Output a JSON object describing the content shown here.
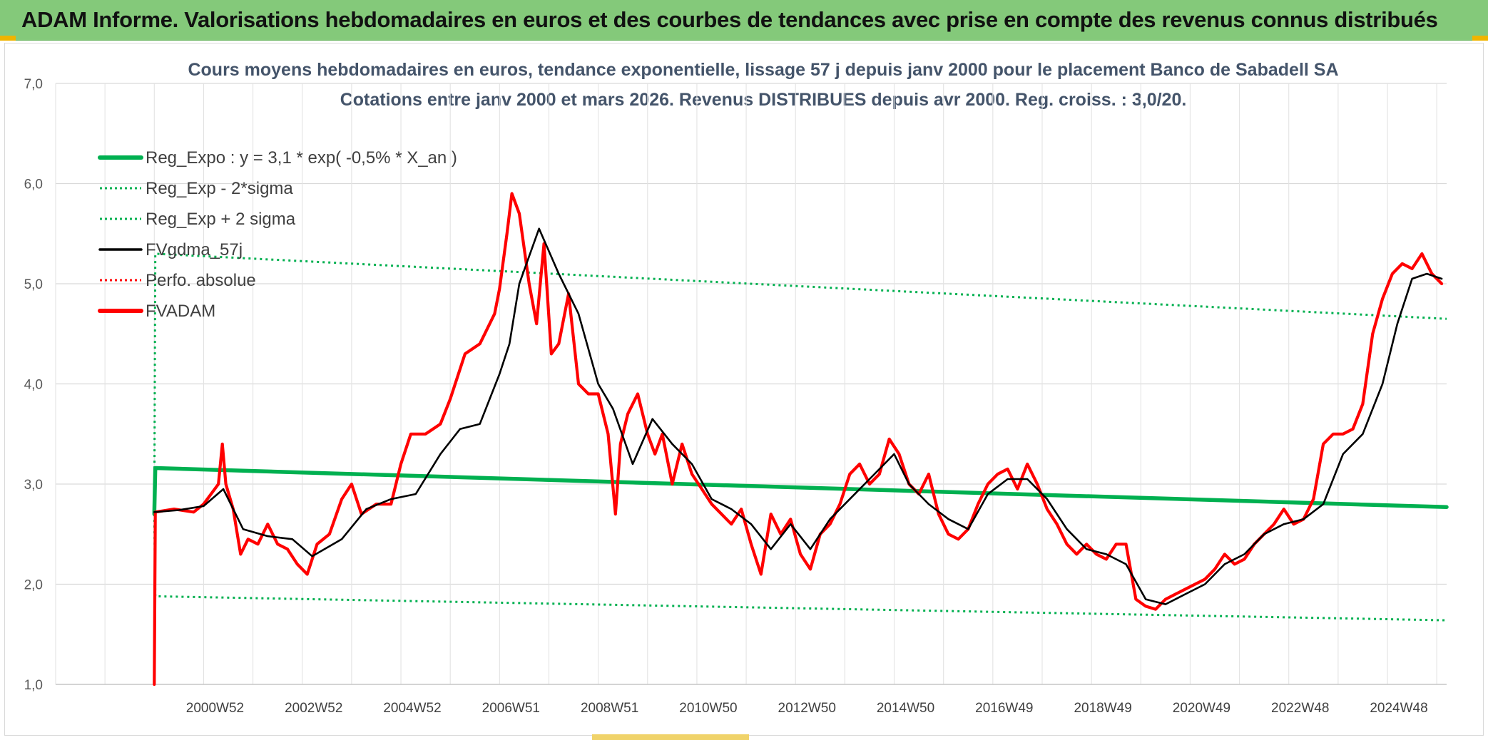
{
  "banner": {
    "title": "ADAM Informe. Valorisations hebdomadaires en euros et des courbes de tendances avec prise en compte des revenus connus distribués"
  },
  "chart_data": {
    "type": "line",
    "title": "Cours moyens hebdomadaires en euros, tendance exponentielle, lissage 57 j depuis janv 2000 pour le placement Banco de Sabadell SA",
    "subtitle": "Cotations entre janv 2000 et mars 2026. Revenus DISTRIBUES depuis avr 2000. Reg. croiss. : 3,0/20.",
    "ylim": [
      1.0,
      7.0
    ],
    "yticks": [
      "1,0",
      "2,0",
      "3,0",
      "4,0",
      "5,0",
      "6,0",
      "7,0"
    ],
    "xlim": [
      1998.0,
      2026.2
    ],
    "xticks": [
      {
        "label": "2000W52",
        "x": 2001.0
      },
      {
        "label": "2002W52",
        "x": 2003.0
      },
      {
        "label": "2004W52",
        "x": 2005.0
      },
      {
        "label": "2006W51",
        "x": 2007.0
      },
      {
        "label": "2008W51",
        "x": 2009.0
      },
      {
        "label": "2010W50",
        "x": 2011.0
      },
      {
        "label": "2012W50",
        "x": 2013.0
      },
      {
        "label": "2014W50",
        "x": 2015.0
      },
      {
        "label": "2016W49",
        "x": 2017.0
      },
      {
        "label": "2018W49",
        "x": 2019.0
      },
      {
        "label": "2020W49",
        "x": 2021.0
      },
      {
        "label": "2022W48",
        "x": 2023.0
      },
      {
        "label": "2024W48",
        "x": 2025.0
      }
    ],
    "grid": true,
    "legend_position": "top-left",
    "legend": [
      {
        "label": "Reg_Expo : y = 3,1 * exp( -0,5% *  X_an )",
        "color": "#00b050",
        "style": "solid-thick"
      },
      {
        "label": "Reg_Exp - 2*sigma",
        "color": "#00b050",
        "style": "dotted"
      },
      {
        "label": "Reg_Exp + 2 sigma",
        "color": "#00b050",
        "style": "dotted"
      },
      {
        "label": "FVgdma_57j",
        "color": "#000000",
        "style": "solid"
      },
      {
        "label": "Perfo. absolue",
        "color": "#ff0000",
        "style": "dotted"
      },
      {
        "label": "FVADAM",
        "color": "#ff0000",
        "style": "solid-thick"
      }
    ],
    "series": [
      {
        "name": "Reg_Expo",
        "x": [
          2000.0,
          2000.02,
          2026.2
        ],
        "values": [
          2.7,
          3.16,
          2.77
        ]
      },
      {
        "name": "Reg_Exp - 2*sigma",
        "x": [
          2000.0,
          2000.02,
          2026.2
        ],
        "values": [
          2.7,
          1.88,
          1.64
        ]
      },
      {
        "name": "Reg_Exp + 2 sigma",
        "x": [
          2000.0,
          2000.02,
          2026.2
        ],
        "values": [
          2.7,
          5.3,
          4.65
        ]
      },
      {
        "name": "FVgdma_57j",
        "x": [
          2000.0,
          2000.5,
          2001.0,
          2001.4,
          2001.8,
          2002.3,
          2002.8,
          2003.2,
          2003.8,
          2004.3,
          2004.8,
          2005.3,
          2005.8,
          2006.2,
          2006.6,
          2007.0,
          2007.2,
          2007.4,
          2007.8,
          2008.2,
          2008.6,
          2009.0,
          2009.3,
          2009.7,
          2010.1,
          2010.5,
          2010.9,
          2011.3,
          2011.7,
          2012.1,
          2012.5,
          2012.9,
          2013.3,
          2013.7,
          2014.1,
          2014.5,
          2015.0,
          2015.3,
          2015.7,
          2016.1,
          2016.5,
          2016.9,
          2017.3,
          2017.7,
          2018.1,
          2018.5,
          2018.9,
          2019.3,
          2019.7,
          2020.1,
          2020.5,
          2020.9,
          2021.3,
          2021.7,
          2022.1,
          2022.5,
          2022.9,
          2023.3,
          2023.7,
          2024.1,
          2024.5,
          2024.9,
          2025.2,
          2025.5,
          2025.8,
          2026.1
        ],
        "values": [
          2.72,
          2.74,
          2.78,
          2.95,
          2.55,
          2.48,
          2.45,
          2.28,
          2.45,
          2.75,
          2.85,
          2.9,
          3.3,
          3.55,
          3.6,
          4.1,
          4.4,
          5.0,
          5.55,
          5.1,
          4.7,
          4.0,
          3.75,
          3.2,
          3.65,
          3.4,
          3.2,
          2.85,
          2.75,
          2.6,
          2.35,
          2.6,
          2.35,
          2.65,
          2.85,
          3.05,
          3.3,
          3.0,
          2.8,
          2.65,
          2.55,
          2.9,
          3.05,
          3.05,
          2.85,
          2.55,
          2.35,
          2.3,
          2.2,
          1.85,
          1.8,
          1.9,
          2.0,
          2.2,
          2.3,
          2.5,
          2.6,
          2.65,
          2.8,
          3.3,
          3.5,
          4.0,
          4.6,
          5.05,
          5.1,
          5.05
        ]
      },
      {
        "name": "FVADAM",
        "x": [
          2000.0,
          2000.02,
          2000.4,
          2000.8,
          2001.0,
          2001.3,
          2001.38,
          2001.45,
          2001.6,
          2001.75,
          2001.9,
          2002.1,
          2002.3,
          2002.5,
          2002.7,
          2002.9,
          2003.1,
          2003.3,
          2003.55,
          2003.8,
          2004.0,
          2004.2,
          2004.5,
          2004.8,
          2005.0,
          2005.2,
          2005.5,
          2005.8,
          2006.0,
          2006.3,
          2006.6,
          2006.9,
          2007.0,
          2007.15,
          2007.25,
          2007.4,
          2007.6,
          2007.75,
          2007.9,
          2008.05,
          2008.2,
          2008.4,
          2008.6,
          2008.8,
          2009.0,
          2009.2,
          2009.35,
          2009.45,
          2009.6,
          2009.8,
          2010.0,
          2010.15,
          2010.3,
          2010.5,
          2010.7,
          2010.9,
          2011.1,
          2011.3,
          2011.5,
          2011.7,
          2011.9,
          2012.1,
          2012.3,
          2012.5,
          2012.7,
          2012.9,
          2013.1,
          2013.3,
          2013.5,
          2013.7,
          2013.9,
          2014.1,
          2014.3,
          2014.5,
          2014.7,
          2014.9,
          2015.1,
          2015.3,
          2015.5,
          2015.7,
          2015.9,
          2016.1,
          2016.3,
          2016.5,
          2016.7,
          2016.9,
          2017.1,
          2017.3,
          2017.5,
          2017.7,
          2017.9,
          2018.1,
          2018.3,
          2018.5,
          2018.7,
          2018.9,
          2019.1,
          2019.3,
          2019.5,
          2019.7,
          2019.9,
          2020.1,
          2020.3,
          2020.5,
          2020.7,
          2020.9,
          2021.1,
          2021.3,
          2021.5,
          2021.7,
          2021.9,
          2022.1,
          2022.3,
          2022.5,
          2022.7,
          2022.9,
          2023.1,
          2023.3,
          2023.5,
          2023.7,
          2023.9,
          2024.1,
          2024.3,
          2024.5,
          2024.7,
          2024.9,
          2025.1,
          2025.3,
          2025.5,
          2025.7,
          2025.9,
          2026.1
        ],
        "values": [
          1.0,
          2.72,
          2.75,
          2.72,
          2.8,
          3.0,
          3.4,
          3.0,
          2.75,
          2.3,
          2.45,
          2.4,
          2.6,
          2.4,
          2.35,
          2.2,
          2.1,
          2.4,
          2.5,
          2.85,
          3.0,
          2.7,
          2.8,
          2.8,
          3.2,
          3.5,
          3.5,
          3.6,
          3.85,
          4.3,
          4.4,
          4.7,
          4.95,
          5.5,
          5.9,
          5.7,
          5.0,
          4.6,
          5.4,
          4.3,
          4.4,
          4.9,
          4.0,
          3.9,
          3.9,
          3.5,
          2.7,
          3.4,
          3.7,
          3.9,
          3.5,
          3.3,
          3.5,
          3.0,
          3.4,
          3.1,
          2.95,
          2.8,
          2.7,
          2.6,
          2.75,
          2.4,
          2.1,
          2.7,
          2.5,
          2.65,
          2.3,
          2.15,
          2.5,
          2.6,
          2.8,
          3.1,
          3.2,
          3.0,
          3.1,
          3.45,
          3.3,
          3.0,
          2.9,
          3.1,
          2.7,
          2.5,
          2.45,
          2.55,
          2.8,
          3.0,
          3.1,
          3.15,
          2.95,
          3.2,
          3.0,
          2.75,
          2.6,
          2.4,
          2.3,
          2.4,
          2.3,
          2.25,
          2.4,
          2.4,
          1.85,
          1.78,
          1.75,
          1.85,
          1.9,
          1.95,
          2.0,
          2.05,
          2.15,
          2.3,
          2.2,
          2.25,
          2.4,
          2.5,
          2.6,
          2.75,
          2.6,
          2.65,
          2.85,
          3.4,
          3.5,
          3.5,
          3.55,
          3.8,
          4.5,
          4.85,
          5.1,
          5.2,
          5.15,
          5.3,
          5.1,
          5.0
        ]
      }
    ]
  }
}
